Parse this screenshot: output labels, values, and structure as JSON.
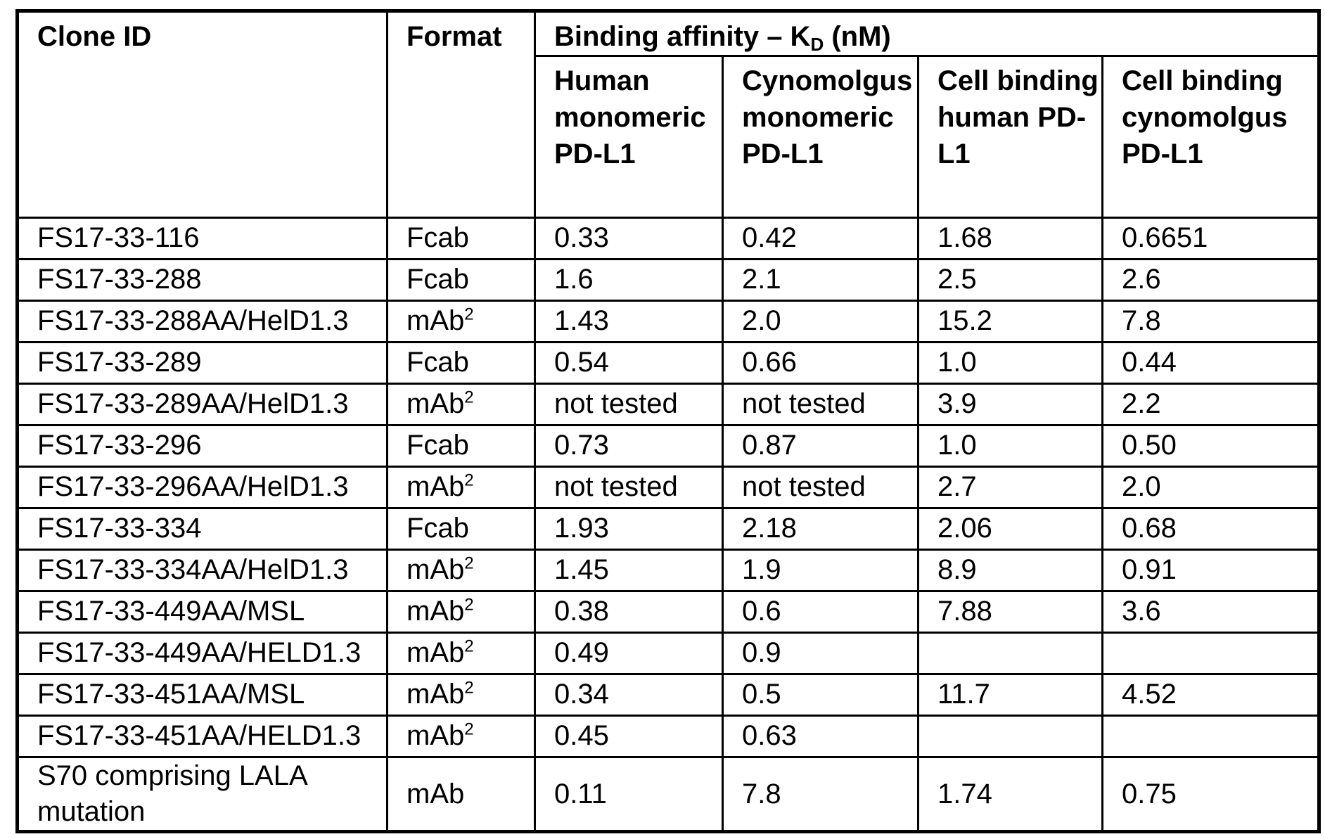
{
  "table": {
    "clone_id_header": "Clone ID",
    "format_header": "Format",
    "binding_header": {
      "pre": "Binding affinity – K",
      "sub": "D",
      "post": " (nM)"
    },
    "sub_columns": [
      "Human monomeric PD-L1",
      "Cynomolgus monomeric PD-L1",
      "Cell binding human PD-L1",
      "Cell binding cynomolgus PD-L1"
    ],
    "rows": [
      {
        "clone_id": "FS17-33-116",
        "format": {
          "base": "Fcab",
          "sup": ""
        },
        "values": [
          "0.33",
          "0.42",
          "1.68",
          "0.6651"
        ]
      },
      {
        "clone_id": "FS17-33-288",
        "format": {
          "base": "Fcab",
          "sup": ""
        },
        "values": [
          "1.6",
          "2.1",
          "2.5",
          "2.6"
        ]
      },
      {
        "clone_id": "FS17-33-288AA/HelD1.3",
        "format": {
          "base": "mAb",
          "sup": "2"
        },
        "values": [
          "1.43",
          "2.0",
          "15.2",
          "7.8"
        ]
      },
      {
        "clone_id": "FS17-33-289",
        "format": {
          "base": "Fcab",
          "sup": ""
        },
        "values": [
          "0.54",
          "0.66",
          "1.0",
          "0.44"
        ]
      },
      {
        "clone_id": "FS17-33-289AA/HelD1.3",
        "format": {
          "base": "mAb",
          "sup": "2"
        },
        "values": [
          "not tested",
          "not tested",
          "3.9",
          "2.2"
        ]
      },
      {
        "clone_id": "FS17-33-296",
        "format": {
          "base": "Fcab",
          "sup": ""
        },
        "values": [
          "0.73",
          "0.87",
          "1.0",
          "0.50"
        ]
      },
      {
        "clone_id": "FS17-33-296AA/HelD1.3",
        "format": {
          "base": "mAb",
          "sup": "2"
        },
        "values": [
          "not tested",
          "not tested",
          "2.7",
          "2.0"
        ]
      },
      {
        "clone_id": "FS17-33-334",
        "format": {
          "base": "Fcab",
          "sup": ""
        },
        "values": [
          "1.93",
          "2.18",
          "2.06",
          "0.68"
        ]
      },
      {
        "clone_id": "FS17-33-334AA/HelD1.3",
        "format": {
          "base": "mAb",
          "sup": "2"
        },
        "values": [
          "1.45",
          "1.9",
          "8.9",
          "0.91"
        ]
      },
      {
        "clone_id": "FS17-33-449AA/MSL",
        "format": {
          "base": "mAb",
          "sup": "2"
        },
        "values": [
          "0.38",
          "0.6",
          "7.88",
          "3.6"
        ]
      },
      {
        "clone_id": "FS17-33-449AA/HELD1.3",
        "format": {
          "base": "mAb",
          "sup": "2"
        },
        "values": [
          "0.49",
          "0.9",
          "",
          ""
        ]
      },
      {
        "clone_id": "FS17-33-451AA/MSL",
        "format": {
          "base": "mAb",
          "sup": "2"
        },
        "values": [
          "0.34",
          "0.5",
          "11.7",
          "4.52"
        ]
      },
      {
        "clone_id": "FS17-33-451AA/HELD1.3",
        "format": {
          "base": "mAb",
          "sup": "2"
        },
        "values": [
          "0.45",
          "0.63",
          "",
          ""
        ]
      },
      {
        "clone_id": "S70 comprising LALA mutation",
        "format": {
          "base": "mAb",
          "sup": ""
        },
        "values": [
          "0.11",
          "7.8",
          "1.74",
          "0.75"
        ]
      }
    ]
  }
}
